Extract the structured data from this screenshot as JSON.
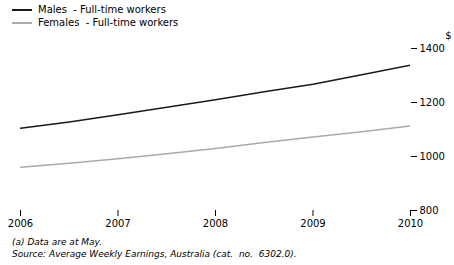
{
  "chart_data": {
    "type": "line",
    "x": [
      2006,
      2006.5,
      2007,
      2007.5,
      2008,
      2008.5,
      2009,
      2009.5,
      2010
    ],
    "series": [
      {
        "name": "Males  - Full-time workers",
        "color": "#1a1a1a",
        "values": [
          1105,
          1128,
          1155,
          1182,
          1210,
          1240,
          1268,
          1303,
          1338
        ]
      },
      {
        "name": "Females  - Full-time workers",
        "color": "#aaaaaa",
        "values": [
          960,
          975,
          992,
          1010,
          1030,
          1052,
          1072,
          1092,
          1113
        ]
      }
    ],
    "ylabel": "$",
    "xlim": [
      2006,
      2010
    ],
    "xticks": [
      2006,
      2007,
      2008,
      2009,
      2010
    ],
    "ylim": [
      800,
      1400
    ],
    "yticks": [
      800,
      1000,
      1200,
      1400
    ],
    "grid": false,
    "legend": "upper left",
    "annotations": [
      "(a) Data are at May.",
      "Source: Average Weekly Earnings, Australia (cat.  no.  6302.0)."
    ]
  }
}
